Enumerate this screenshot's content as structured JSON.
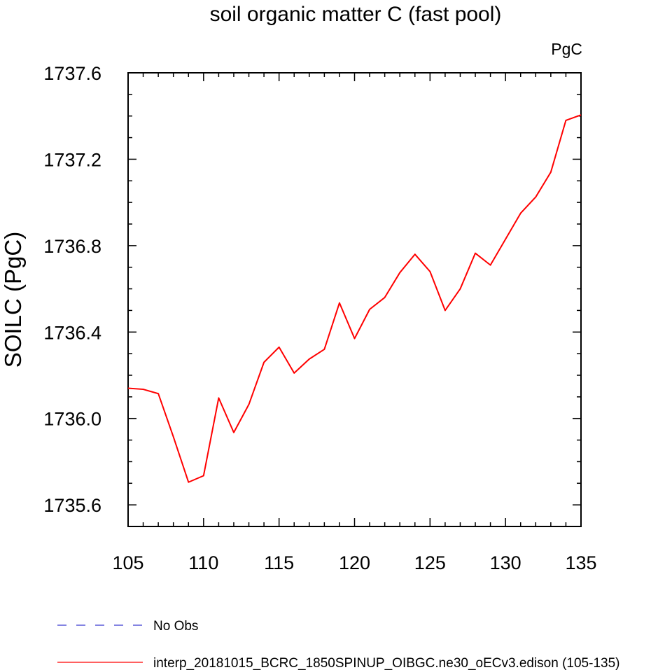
{
  "chart_data": {
    "type": "line",
    "title": "soil organic matter C (fast pool)",
    "units": "PgC",
    "xlabel": "",
    "ylabel": "SOILC  (PgC)",
    "xlim": [
      105,
      135
    ],
    "ylim": [
      1735.5,
      1737.6
    ],
    "x_ticks": [
      "105",
      "110",
      "115",
      "120",
      "125",
      "130",
      "135"
    ],
    "y_ticks": [
      "1735.6",
      "1736.0",
      "1736.4",
      "1736.8",
      "1737.2",
      "1737.6"
    ],
    "grid": false,
    "legend_position": "bottom",
    "legend": [
      {
        "label": "No Obs",
        "color": "#3a3ad0",
        "dash": true
      },
      {
        "label": "interp_20181015_BCRC_1850SPINUP_OIBGC.ne30_oECv3.edison (105-135)",
        "color": "#ff0000",
        "dash": false
      }
    ],
    "series": [
      {
        "name": "interp_20181015_BCRC_1850SPINUP_OIBGC.ne30_oECv3.edison (105-135)",
        "color": "#ff0000",
        "x": [
          105,
          106,
          107,
          108,
          109,
          110,
          111,
          112,
          113,
          114,
          115,
          116,
          117,
          118,
          119,
          120,
          121,
          122,
          123,
          124,
          125,
          126,
          127,
          128,
          129,
          130,
          131,
          132,
          133,
          134,
          135
        ],
        "values": [
          1736.14,
          1736.135,
          1736.115,
          1735.915,
          1735.705,
          1735.735,
          1736.095,
          1735.935,
          1736.065,
          1736.26,
          1736.33,
          1736.21,
          1736.275,
          1736.32,
          1736.535,
          1736.37,
          1736.505,
          1736.56,
          1736.675,
          1736.76,
          1736.68,
          1736.5,
          1736.6,
          1736.765,
          1736.71,
          1736.83,
          1736.95,
          1737.025,
          1737.14,
          1737.38,
          1737.405
        ]
      }
    ]
  }
}
